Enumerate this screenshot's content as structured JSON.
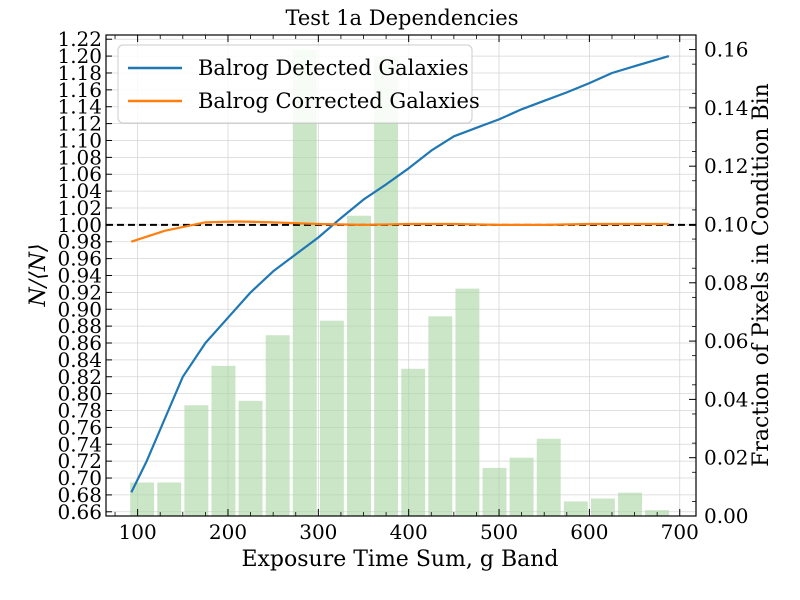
{
  "chart_data": {
    "type": "line",
    "title": "Test 1a Dependencies",
    "xlabel": "Exposure Time Sum, g Band",
    "ylabel_left": "N/⟨N⟩",
    "ylabel_right": "Fraction of Pixels in Condition Bin",
    "xlim": [
      65,
      718
    ],
    "ylim_left": [
      0.655,
      1.225
    ],
    "ylim_right": [
      0.0,
      0.165
    ],
    "x_ticks": [
      100,
      200,
      300,
      400,
      500,
      600,
      700
    ],
    "y_left_ticks": [
      "0.66",
      "0.68",
      "0.70",
      "0.72",
      "0.74",
      "0.76",
      "0.78",
      "0.80",
      "0.82",
      "0.84",
      "0.86",
      "0.88",
      "0.90",
      "0.92",
      "0.94",
      "0.96",
      "0.98",
      "1.00",
      "1.02",
      "1.04",
      "1.06",
      "1.08",
      "1.10",
      "1.12",
      "1.14",
      "1.16",
      "1.18",
      "1.20",
      "1.22"
    ],
    "y_right_ticks": [
      "0.00",
      "0.02",
      "0.04",
      "0.06",
      "0.08",
      "0.10",
      "0.12",
      "0.14",
      "0.16"
    ],
    "grid": true,
    "legend_position": "top-left",
    "reference_line": {
      "y": 1.0,
      "style": "dashed",
      "color": "#000000"
    },
    "series": [
      {
        "name": "Balrog Detected Galaxies",
        "color": "#1f77b4",
        "x": [
          93,
          110,
          130,
          150,
          175,
          200,
          225,
          250,
          275,
          300,
          325,
          350,
          375,
          400,
          425,
          450,
          475,
          500,
          525,
          550,
          575,
          600,
          625,
          650,
          688
        ],
        "y": [
          0.683,
          0.72,
          0.77,
          0.82,
          0.86,
          0.89,
          0.92,
          0.945,
          0.965,
          0.985,
          1.008,
          1.03,
          1.048,
          1.067,
          1.088,
          1.105,
          1.115,
          1.125,
          1.137,
          1.147,
          1.157,
          1.168,
          1.18,
          1.188,
          1.2
        ]
      },
      {
        "name": "Balrog Corrected Galaxies",
        "color": "#ff7f0e",
        "x": [
          93,
          130,
          175,
          210,
          250,
          300,
          350,
          400,
          450,
          500,
          550,
          600,
          650,
          688
        ],
        "y": [
          0.98,
          0.993,
          1.003,
          1.004,
          1.003,
          1.001,
          1.0,
          1.001,
          1.001,
          1.0,
          1.0,
          1.001,
          1.001,
          1.001
        ]
      }
    ],
    "bars": {
      "name": "Fraction of Pixels in Condition Bin",
      "axis": "right",
      "color": "#a8d5a2",
      "width": 26.5,
      "x": [
        105,
        135,
        165,
        195,
        225,
        255,
        285,
        315,
        345,
        375,
        405,
        435,
        465,
        495,
        525,
        555,
        585,
        615,
        645,
        675
      ],
      "values": [
        0.0115,
        0.0115,
        0.038,
        0.0515,
        0.0395,
        0.062,
        0.16,
        0.067,
        0.103,
        0.1575,
        0.0505,
        0.0685,
        0.078,
        0.0165,
        0.02,
        0.0265,
        0.005,
        0.006,
        0.008,
        0.002
      ]
    }
  }
}
